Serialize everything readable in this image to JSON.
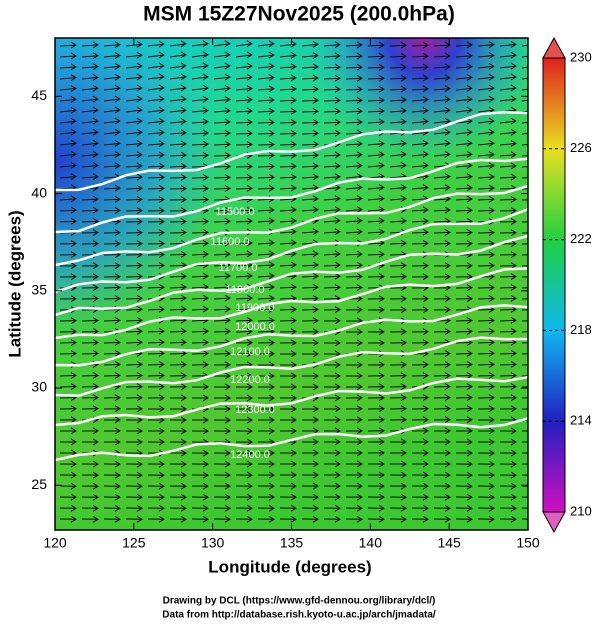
{
  "title": "MSM 15Z27Nov2025 (200.0hPa)",
  "x_axis": {
    "label": "Longitude (degrees)",
    "range": [
      120,
      150
    ],
    "ticks": [
      120,
      125,
      130,
      135,
      140,
      145,
      150
    ]
  },
  "y_axis": {
    "label": "Latitude  (degrees)",
    "range": [
      22.7,
      48
    ],
    "ticks": [
      25,
      30,
      35,
      40,
      45
    ]
  },
  "colorbar": {
    "range": [
      210,
      230
    ],
    "ticks": [
      210,
      214,
      218,
      222,
      226,
      230
    ]
  },
  "contours": [
    {
      "label": "11500.0"
    },
    {
      "label": "11600.0"
    },
    {
      "label": "11700.0"
    },
    {
      "label": "11800.0"
    },
    {
      "label": "11900.0"
    },
    {
      "label": "12000.0"
    },
    {
      "label": "12100.0"
    },
    {
      "label": "12200.0"
    },
    {
      "label": "12300.0"
    },
    {
      "label": "12400.0"
    }
  ],
  "credits": [
    "Drawing by DCL (https://www.gfd-dennou.org/library/dcl/)",
    "Data from http://database.rish.kyoto-u.ac.jp/arch/jmadata/"
  ]
}
